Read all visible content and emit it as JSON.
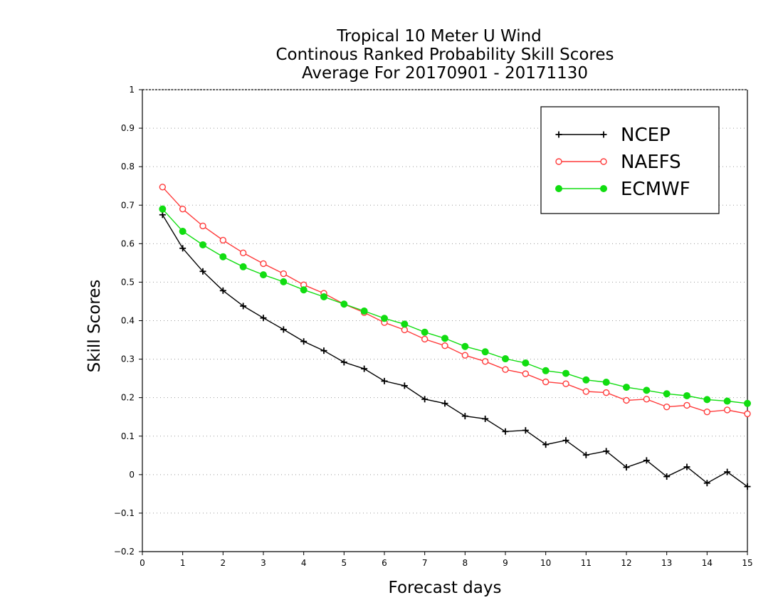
{
  "chart_data": {
    "type": "line",
    "title_lines": [
      "Tropical 10 Meter U Wind",
      "Continous Ranked Probability Skill Scores",
      "Average For 20170901 - 20171130"
    ],
    "xlabel": "Forecast days",
    "ylabel": "Skill Scores",
    "xlim": [
      0,
      15
    ],
    "ylim": [
      -0.2,
      1
    ],
    "x_ticks": [
      0,
      1,
      2,
      3,
      4,
      5,
      6,
      7,
      8,
      9,
      10,
      11,
      12,
      13,
      14,
      15
    ],
    "y_ticks": [
      -0.2,
      -0.1,
      0,
      0.1,
      0.2,
      0.3,
      0.4,
      0.5,
      0.6,
      0.7,
      0.8,
      0.9,
      1
    ],
    "y_tick_labels": [
      "−0.2",
      "−0.1",
      "0",
      "0.1",
      "0.2",
      "0.3",
      "0.4",
      "0.5",
      "0.6",
      "0.7",
      "0.8",
      "0.9",
      "1"
    ],
    "grid": "horizontal dotted",
    "legend_position": "top-right",
    "x": [
      0.5,
      1,
      1.5,
      2,
      2.5,
      3,
      3.5,
      4,
      4.5,
      5,
      5.5,
      6,
      6.5,
      7,
      7.5,
      8,
      8.5,
      9,
      9.5,
      10,
      10.5,
      11,
      11.5,
      12,
      12.5,
      13,
      13.5,
      14,
      14.5,
      15
    ],
    "series": [
      {
        "name": "NCEP",
        "color": "#000000",
        "marker": "plus",
        "values": [
          0.675,
          0.588,
          0.528,
          0.478,
          0.438,
          0.407,
          0.377,
          0.346,
          0.322,
          0.292,
          0.275,
          0.243,
          0.231,
          0.196,
          0.185,
          0.152,
          0.145,
          0.112,
          0.115,
          0.078,
          0.089,
          0.051,
          0.061,
          0.019,
          0.037,
          -0.005,
          0.02,
          -0.022,
          0.007,
          -0.031
        ]
      },
      {
        "name": "NAEFS",
        "color": "#ff3b3b",
        "marker": "open-circle",
        "values": [
          0.747,
          0.69,
          0.646,
          0.609,
          0.576,
          0.548,
          0.522,
          0.493,
          0.471,
          0.443,
          0.421,
          0.395,
          0.376,
          0.352,
          0.335,
          0.31,
          0.294,
          0.273,
          0.262,
          0.241,
          0.236,
          0.216,
          0.213,
          0.193,
          0.196,
          0.176,
          0.18,
          0.163,
          0.168,
          0.158
        ]
      },
      {
        "name": "ECMWF",
        "color": "#11dd11",
        "marker": "filled-circle",
        "values": [
          0.69,
          0.632,
          0.597,
          0.566,
          0.54,
          0.519,
          0.501,
          0.48,
          0.462,
          0.443,
          0.425,
          0.406,
          0.391,
          0.37,
          0.354,
          0.333,
          0.319,
          0.301,
          0.29,
          0.27,
          0.263,
          0.246,
          0.24,
          0.227,
          0.219,
          0.21,
          0.205,
          0.195,
          0.191,
          0.185
        ]
      }
    ]
  }
}
